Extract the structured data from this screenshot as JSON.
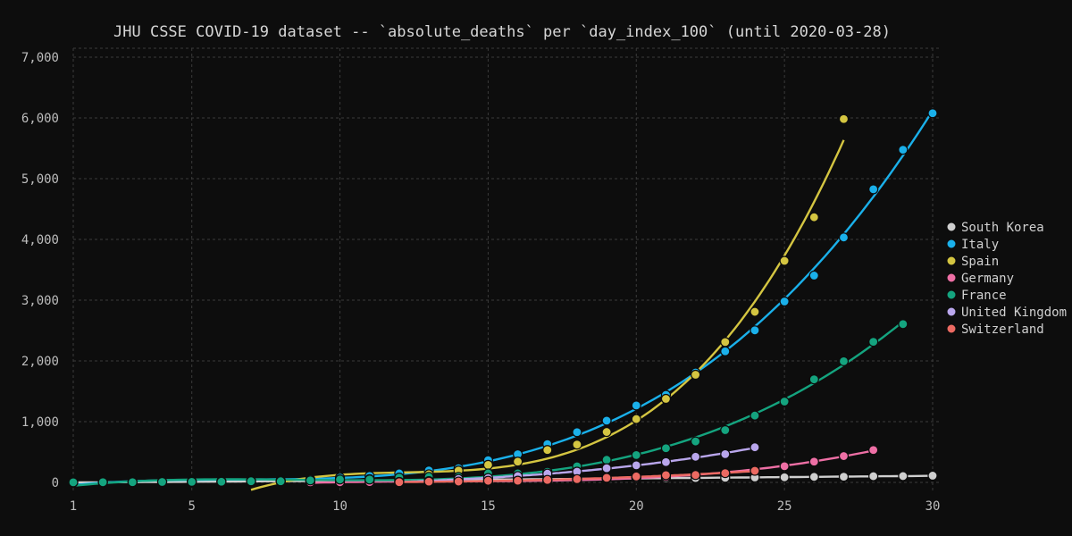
{
  "chart_data": {
    "type": "scatter",
    "title": "JHU CSSE COVID-19 dataset -- `absolute_deaths` per `day_index_100` (until 2020-03-28)",
    "xlabel": "",
    "ylabel": "",
    "xlim": [
      1,
      30
    ],
    "ylim": [
      0,
      7000
    ],
    "x_ticks": [
      "1",
      "5",
      "10",
      "15",
      "20",
      "25",
      "30"
    ],
    "y_ticks": [
      "0",
      "1,000",
      "2,000",
      "3,000",
      "4,000",
      "5,000",
      "6,000",
      "7,000"
    ],
    "x_tick_values": [
      1,
      5,
      10,
      15,
      20,
      25,
      30
    ],
    "y_tick_values": [
      0,
      1000,
      2000,
      3000,
      4000,
      5000,
      6000,
      7000
    ],
    "grid": true,
    "legend_position": "right",
    "trend_lines": true,
    "series": [
      {
        "name": "South Korea",
        "color": "#cfcfcf",
        "x": [
          1,
          2,
          3,
          4,
          5,
          6,
          7,
          8,
          9,
          10,
          11,
          12,
          13,
          14,
          15,
          16,
          17,
          18,
          19,
          20,
          21,
          22,
          23,
          24,
          25,
          26,
          27,
          28,
          29,
          30
        ],
        "y": [
          1,
          2,
          6,
          8,
          11,
          12,
          13,
          16,
          17,
          28,
          32,
          35,
          42,
          44,
          50,
          53,
          54,
          60,
          66,
          66,
          67,
          72,
          75,
          81,
          84,
          91,
          94,
          102,
          104,
          111
        ]
      },
      {
        "name": "Italy",
        "color": "#1ab0ea",
        "x": [
          1,
          2,
          3,
          4,
          5,
          6,
          7,
          8,
          9,
          10,
          11,
          12,
          13,
          14,
          15,
          16,
          17,
          18,
          19,
          20,
          21,
          22,
          23,
          24,
          25,
          26,
          27,
          28,
          29,
          30
        ],
        "y": [
          3,
          7,
          10,
          12,
          17,
          21,
          29,
          34,
          52,
          79,
          107,
          148,
          197,
          233,
          366,
          463,
          631,
          827,
          1016,
          1266,
          1441,
          1809,
          2158,
          2503,
          2978,
          3405,
          4032,
          4825,
          5476,
          6077
        ]
      },
      {
        "name": "Spain",
        "color": "#d4c541",
        "x": [
          7,
          8,
          9,
          10,
          11,
          12,
          13,
          14,
          15,
          16,
          17,
          18,
          19,
          20,
          21,
          22,
          23,
          24,
          25,
          26,
          27
        ],
        "y": [
          10,
          17,
          28,
          35,
          54,
          55,
          133,
          195,
          289,
          342,
          533,
          623,
          830,
          1043,
          1375,
          1772,
          2311,
          2808,
          3647,
          4365,
          5982
        ]
      },
      {
        "name": "Germany",
        "color": "#ee6fa5",
        "x": [
          9,
          10,
          11,
          12,
          13,
          14,
          15,
          16,
          17,
          18,
          19,
          20,
          21,
          22,
          23,
          24,
          25,
          26,
          27,
          28
        ],
        "y": [
          2,
          3,
          6,
          9,
          11,
          13,
          17,
          24,
          28,
          44,
          67,
          84,
          94,
          123,
          157,
          206,
          267,
          342,
          433,
          533
        ]
      },
      {
        "name": "France",
        "color": "#14a47f",
        "x": [
          1,
          2,
          3,
          4,
          5,
          6,
          7,
          8,
          9,
          10,
          11,
          12,
          13,
          14,
          15,
          16,
          17,
          18,
          19,
          20,
          21,
          22,
          23,
          24,
          25,
          26,
          27,
          28,
          29
        ],
        "y": [
          2,
          3,
          4,
          7,
          9,
          11,
          19,
          19,
          33,
          48,
          48,
          79,
          91,
          91,
          148,
          148,
          175,
          264,
          372,
          450,
          562,
          674,
          860,
          1100,
          1331,
          1696,
          1995,
          2314,
          2606
        ]
      },
      {
        "name": "United Kingdom",
        "color": "#b9a6ec",
        "x": [
          12,
          13,
          14,
          15,
          16,
          17,
          18,
          19,
          20,
          21,
          22,
          23,
          24
        ],
        "y": [
          8,
          21,
          56,
          72,
          104,
          144,
          177,
          233,
          281,
          335,
          422,
          465,
          578
        ]
      },
      {
        "name": "Switzerland",
        "color": "#ec6a62",
        "x": [
          12,
          13,
          14,
          15,
          16,
          17,
          18,
          19,
          20,
          21,
          22,
          23,
          24
        ],
        "y": [
          4,
          13,
          14,
          27,
          28,
          41,
          54,
          75,
          98,
          120,
          122,
          153,
          191
        ]
      }
    ]
  }
}
